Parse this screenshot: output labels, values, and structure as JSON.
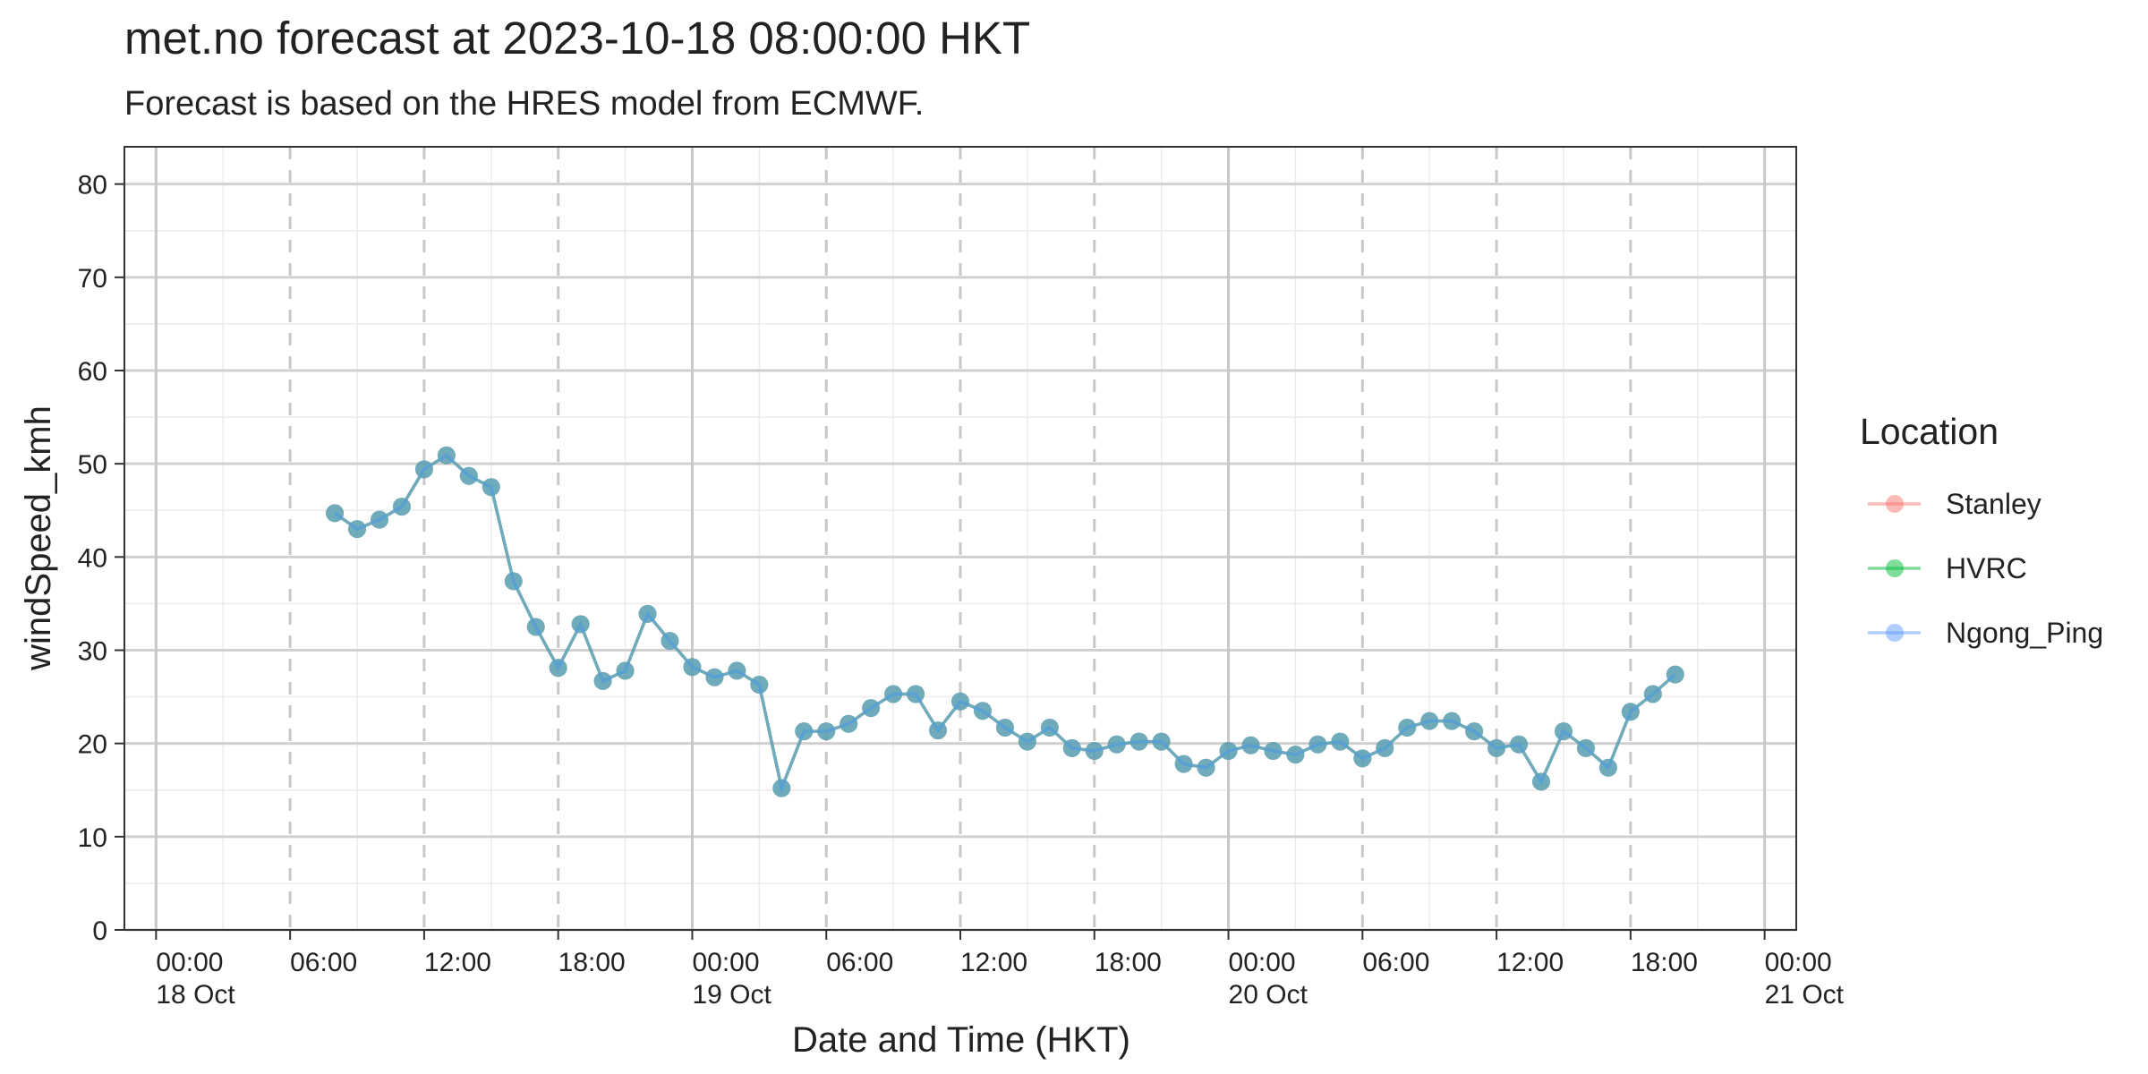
{
  "chart_data": {
    "type": "line",
    "title": "met.no forecast at 2023-10-18 08:00:00 HKT",
    "subtitle": "Forecast is based on the HRES model from ECMWF.",
    "x_label": "Date and Time (HKT)",
    "y_label": "windSpeed_kmh",
    "legend_title": "Location",
    "legend_position": "right",
    "grid": true,
    "x": [
      "18 Oct 08:00",
      "18 Oct 09:00",
      "18 Oct 10:00",
      "18 Oct 11:00",
      "18 Oct 12:00",
      "18 Oct 13:00",
      "18 Oct 14:00",
      "18 Oct 15:00",
      "18 Oct 16:00",
      "18 Oct 17:00",
      "18 Oct 18:00",
      "18 Oct 19:00",
      "18 Oct 20:00",
      "18 Oct 21:00",
      "18 Oct 22:00",
      "18 Oct 23:00",
      "19 Oct 00:00",
      "19 Oct 01:00",
      "19 Oct 02:00",
      "19 Oct 03:00",
      "19 Oct 04:00",
      "19 Oct 05:00",
      "19 Oct 06:00",
      "19 Oct 07:00",
      "19 Oct 08:00",
      "19 Oct 09:00",
      "19 Oct 10:00",
      "19 Oct 11:00",
      "19 Oct 12:00",
      "19 Oct 13:00",
      "19 Oct 14:00",
      "19 Oct 15:00",
      "19 Oct 16:00",
      "19 Oct 17:00",
      "19 Oct 18:00",
      "19 Oct 19:00",
      "19 Oct 20:00",
      "19 Oct 21:00",
      "19 Oct 22:00",
      "19 Oct 23:00",
      "20 Oct 00:00",
      "20 Oct 01:00",
      "20 Oct 02:00",
      "20 Oct 03:00",
      "20 Oct 04:00",
      "20 Oct 05:00",
      "20 Oct 06:00",
      "20 Oct 07:00",
      "20 Oct 08:00",
      "20 Oct 09:00",
      "20 Oct 10:00",
      "20 Oct 11:00",
      "20 Oct 12:00",
      "20 Oct 13:00",
      "20 Oct 14:00",
      "20 Oct 15:00",
      "20 Oct 16:00",
      "20 Oct 17:00",
      "20 Oct 18:00",
      "20 Oct 19:00",
      "20 Oct 20:00"
    ],
    "series": [
      {
        "name": "Stanley",
        "color": "#F8766D",
        "values": [
          44.7,
          43,
          44,
          45.4,
          49.4,
          50.9,
          48.7,
          47.5,
          37.4,
          32.5,
          28.1,
          32.8,
          26.7,
          27.8,
          33.9,
          31,
          28.2,
          27.1,
          27.8,
          26.3,
          15.2,
          21.3,
          21.3,
          22.1,
          23.8,
          25.3,
          25.3,
          21.4,
          24.5,
          23.5,
          21.7,
          20.2,
          21.7,
          19.5,
          19.2,
          19.9,
          20.2,
          20.2,
          17.8,
          17.4,
          19.2,
          19.8,
          19.2,
          18.8,
          19.9,
          20.2,
          18.4,
          19.5,
          21.7,
          22.4,
          22.4,
          21.3,
          19.5,
          19.9,
          15.9,
          21.3,
          19.5,
          17.4,
          23.4,
          25.3,
          27.4
        ]
      },
      {
        "name": "HVRC",
        "color": "#00BA38",
        "values": [
          44.7,
          43,
          44,
          45.4,
          49.4,
          50.9,
          48.7,
          47.5,
          37.4,
          32.5,
          28.1,
          32.8,
          26.7,
          27.8,
          33.9,
          31,
          28.2,
          27.1,
          27.8,
          26.3,
          15.2,
          21.3,
          21.3,
          22.1,
          23.8,
          25.3,
          25.3,
          21.4,
          24.5,
          23.5,
          21.7,
          20.2,
          21.7,
          19.5,
          19.2,
          19.9,
          20.2,
          20.2,
          17.8,
          17.4,
          19.2,
          19.8,
          19.2,
          18.8,
          19.9,
          20.2,
          18.4,
          19.5,
          21.7,
          22.4,
          22.4,
          21.3,
          19.5,
          19.9,
          15.9,
          21.3,
          19.5,
          17.4,
          23.4,
          25.3,
          27.4
        ]
      },
      {
        "name": "Ngong_Ping",
        "color": "#619CFF",
        "values": [
          44.7,
          43,
          44,
          45.4,
          49.4,
          50.9,
          48.7,
          47.5,
          37.4,
          32.5,
          28.1,
          32.8,
          26.7,
          27.8,
          33.9,
          31,
          28.2,
          27.1,
          27.8,
          26.3,
          15.2,
          21.3,
          21.3,
          22.1,
          23.8,
          25.3,
          25.3,
          21.4,
          24.5,
          23.5,
          21.7,
          20.2,
          21.7,
          19.5,
          19.2,
          19.9,
          20.2,
          20.2,
          17.8,
          17.4,
          19.2,
          19.8,
          19.2,
          18.8,
          19.9,
          20.2,
          18.4,
          19.5,
          21.7,
          22.4,
          22.4,
          21.3,
          19.5,
          19.9,
          15.9,
          21.3,
          19.5,
          17.4,
          23.4,
          25.3,
          27.4
        ]
      }
    ],
    "xlim": [
      "17 Oct 22:35",
      "21 Oct 01:25"
    ],
    "xticks": [
      {
        "value": "18 Oct 00:00",
        "label": "00:00\n18 Oct"
      },
      {
        "value": "18 Oct 06:00",
        "label": "06:00"
      },
      {
        "value": "18 Oct 12:00",
        "label": "12:00"
      },
      {
        "value": "18 Oct 18:00",
        "label": "18:00"
      },
      {
        "value": "19 Oct 00:00",
        "label": "00:00\n19 Oct"
      },
      {
        "value": "19 Oct 06:00",
        "label": "06:00"
      },
      {
        "value": "19 Oct 12:00",
        "label": "12:00"
      },
      {
        "value": "19 Oct 18:00",
        "label": "18:00"
      },
      {
        "value": "20 Oct 00:00",
        "label": "00:00\n20 Oct"
      },
      {
        "value": "20 Oct 06:00",
        "label": "06:00"
      },
      {
        "value": "20 Oct 12:00",
        "label": "12:00"
      },
      {
        "value": "20 Oct 18:00",
        "label": "18:00"
      },
      {
        "value": "21 Oct 00:00",
        "label": "00:00\n21 Oct"
      }
    ],
    "ylim": [
      0,
      84
    ],
    "yticks": [
      0,
      10,
      20,
      30,
      40,
      50,
      60,
      70,
      80
    ]
  }
}
